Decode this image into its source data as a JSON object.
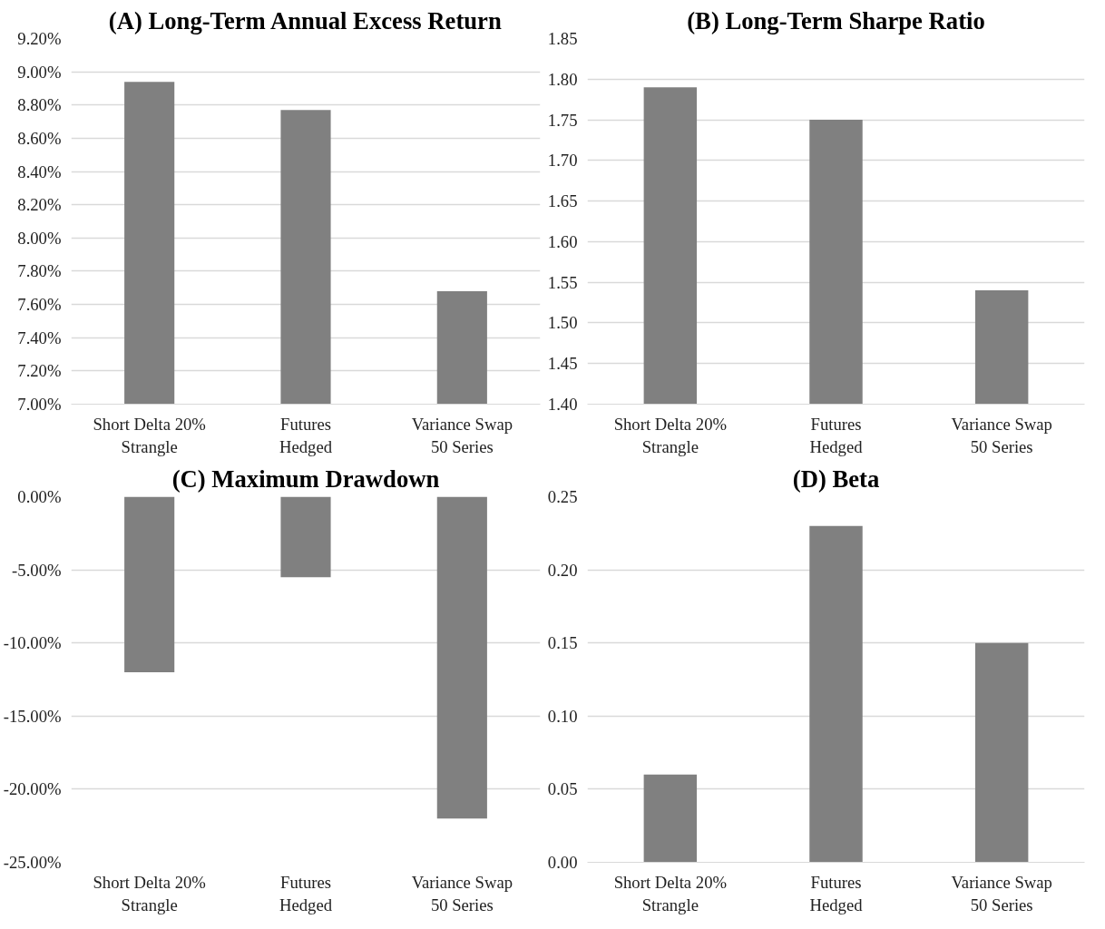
{
  "chart_data": [
    {
      "type": "bar",
      "title": "(A) Long-Term Annual Excess Return",
      "categories": [
        "Short Delta 20%\nStrangle",
        "Futures\nHedged",
        "Variance Swap\n50 Series"
      ],
      "values": [
        8.94,
        8.77,
        7.68
      ],
      "color": "#808080",
      "ylim": [
        7.0,
        9.2
      ],
      "yticks": [
        {
          "value": 7.0,
          "label": "7.00%"
        },
        {
          "value": 7.2,
          "label": "7.20%"
        },
        {
          "value": 7.4,
          "label": "7.40%"
        },
        {
          "value": 7.6,
          "label": "7.60%"
        },
        {
          "value": 7.8,
          "label": "7.80%"
        },
        {
          "value": 8.0,
          "label": "8.00%"
        },
        {
          "value": 8.2,
          "label": "8.20%"
        },
        {
          "value": 8.4,
          "label": "8.40%"
        },
        {
          "value": 8.6,
          "label": "8.60%"
        },
        {
          "value": 8.8,
          "label": "8.80%"
        },
        {
          "value": 9.0,
          "label": "9.00%"
        },
        {
          "value": 9.2,
          "label": "9.20%"
        }
      ],
      "grid": "y"
    },
    {
      "type": "bar",
      "title": "(B) Long-Term Sharpe Ratio",
      "categories": [
        "Short Delta 20%\nStrangle",
        "Futures\nHedged",
        "Variance Swap\n50 Series"
      ],
      "values": [
        1.79,
        1.75,
        1.54
      ],
      "color": "#808080",
      "ylim": [
        1.4,
        1.85
      ],
      "yticks": [
        {
          "value": 1.4,
          "label": "1.40"
        },
        {
          "value": 1.45,
          "label": "1.45"
        },
        {
          "value": 1.5,
          "label": "1.50"
        },
        {
          "value": 1.55,
          "label": "1.55"
        },
        {
          "value": 1.6,
          "label": "1.60"
        },
        {
          "value": 1.65,
          "label": "1.65"
        },
        {
          "value": 1.7,
          "label": "1.70"
        },
        {
          "value": 1.75,
          "label": "1.75"
        },
        {
          "value": 1.8,
          "label": "1.80"
        },
        {
          "value": 1.85,
          "label": "1.85"
        }
      ],
      "grid": "y"
    },
    {
      "type": "bar",
      "title": "(C) Maximum Drawdown",
      "categories": [
        "Short Delta 20%\nStrangle",
        "Futures\nHedged",
        "Variance Swap\n50 Series"
      ],
      "values": [
        -12.0,
        -5.5,
        -22.0
      ],
      "color": "#808080",
      "ylim": [
        -25,
        0
      ],
      "yticks": [
        {
          "value": -25,
          "label": "-25.00%"
        },
        {
          "value": -20,
          "label": "-20.00%"
        },
        {
          "value": -15,
          "label": "-15.00%"
        },
        {
          "value": -10,
          "label": "-10.00%"
        },
        {
          "value": -5,
          "label": "-5.00%"
        },
        {
          "value": 0,
          "label": "0.00%"
        }
      ],
      "grid": "y"
    },
    {
      "type": "bar",
      "title": "(D) Beta",
      "categories": [
        "Short Delta 20%\nStrangle",
        "Futures\nHedged",
        "Variance Swap\n50 Series"
      ],
      "values": [
        0.06,
        0.23,
        0.15
      ],
      "color": "#808080",
      "ylim": [
        0,
        0.25
      ],
      "yticks": [
        {
          "value": 0,
          "label": "0.00"
        },
        {
          "value": 0.05,
          "label": "0.05"
        },
        {
          "value": 0.1,
          "label": "0.10"
        },
        {
          "value": 0.15,
          "label": "0.15"
        },
        {
          "value": 0.2,
          "label": "0.20"
        },
        {
          "value": 0.25,
          "label": "0.25"
        }
      ],
      "grid": "y"
    }
  ]
}
